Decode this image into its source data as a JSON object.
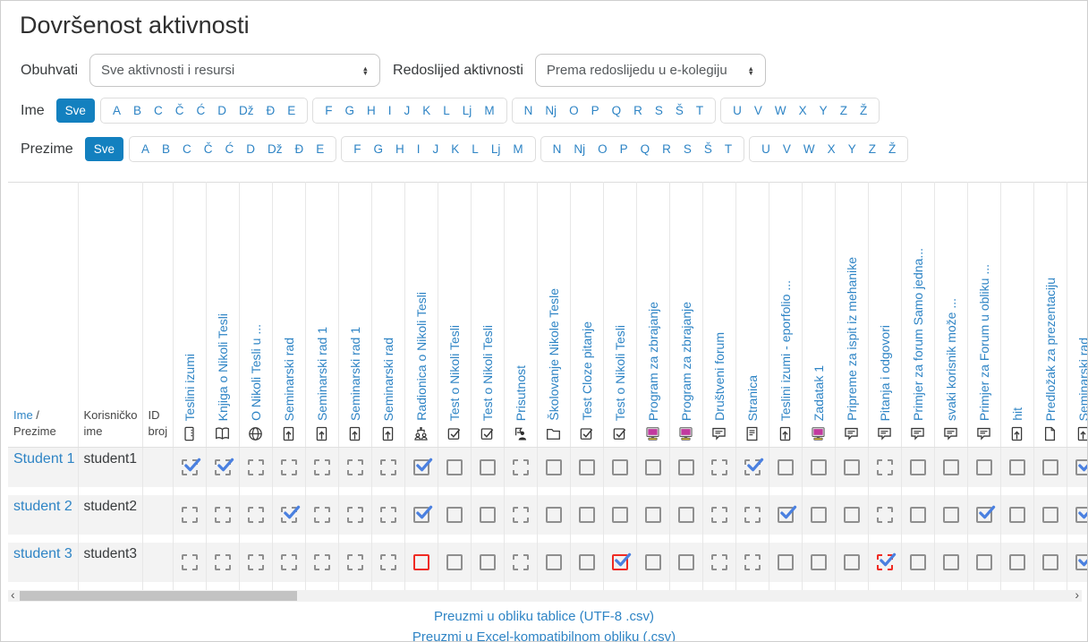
{
  "page": {
    "title": "Dovršenost aktivnosti"
  },
  "filters": {
    "include_label": "Obuhvati",
    "include_value": "Sve aktivnosti i resursi",
    "order_label": "Redoslijed aktivnosti",
    "order_value": "Prema redoslijedu u e-kolegiju"
  },
  "name_filters": {
    "first_label": "Ime",
    "last_label": "Prezime",
    "all_label": "Sve",
    "letter_groups": [
      [
        "A",
        "B",
        "C",
        "Č",
        "Ć",
        "D",
        "Dž",
        "Đ",
        "E"
      ],
      [
        "F",
        "G",
        "H",
        "I",
        "J",
        "K",
        "L",
        "Lj",
        "M"
      ],
      [
        "N",
        "Nj",
        "O",
        "P",
        "Q",
        "R",
        "S",
        "Š",
        "T"
      ],
      [
        "U",
        "V",
        "W",
        "X",
        "Y",
        "Z",
        "Ž"
      ]
    ]
  },
  "table": {
    "first_col": {
      "sort_first": "Ime",
      "separator": "/",
      "sort_last": "Prezime"
    },
    "username_header": "Korisničko ime",
    "id_header": "ID broj",
    "columns": [
      {
        "label": "Teslini izumi",
        "icon": "book-icon"
      },
      {
        "label": "Knjiga o Nikoli Tesli",
        "icon": "open-book-icon"
      },
      {
        "label": "O Nikoli Tesli u ...",
        "icon": "globe-icon"
      },
      {
        "label": "Seminarski rad",
        "icon": "assignment-icon"
      },
      {
        "label": "Seminarski rad 1",
        "icon": "assignment-icon"
      },
      {
        "label": "Seminarski rad 1",
        "icon": "assignment-icon"
      },
      {
        "label": "Seminarski rad",
        "icon": "assignment-icon"
      },
      {
        "label": "Radionica o Nikoli Tesli",
        "icon": "workshop-icon"
      },
      {
        "label": "Test o Nikoli Tesli",
        "icon": "quiz-icon"
      },
      {
        "label": "Test o Nikoli Tesli",
        "icon": "quiz-icon"
      },
      {
        "label": "Prisutnost",
        "icon": "attendance-icon"
      },
      {
        "label": "Školovanje Nikole Tesle",
        "icon": "folder-icon"
      },
      {
        "label": "Test Cloze pitanje",
        "icon": "quiz-icon"
      },
      {
        "label": "Test o Nikoli Tesli",
        "icon": "quiz-icon"
      },
      {
        "label": "Program za zbrajanje",
        "icon": "external-tool-icon"
      },
      {
        "label": "Program za zbrajanje",
        "icon": "external-tool-icon"
      },
      {
        "label": "Društveni forum",
        "icon": "forum-icon"
      },
      {
        "label": "Stranica",
        "icon": "page-icon"
      },
      {
        "label": "Teslini izumi - eporfolio ...",
        "icon": "assignment-icon"
      },
      {
        "label": "Zadatak 1",
        "icon": "external-tool-icon"
      },
      {
        "label": "Pripreme za ispit iz mehanike",
        "icon": "forum-icon"
      },
      {
        "label": "Pitanja i odgovori",
        "icon": "forum-icon"
      },
      {
        "label": "Primjer za forum Samo jedna...",
        "icon": "forum-icon"
      },
      {
        "label": "svaki korisnik može ...",
        "icon": "forum-icon"
      },
      {
        "label": "Primjer za Forum u obliku ...",
        "icon": "forum-icon"
      },
      {
        "label": "hit",
        "icon": "assignment-icon"
      },
      {
        "label": "Predložak za prezentaciju",
        "icon": "blank-page-icon"
      },
      {
        "label": "Seminarski rad",
        "icon": "assignment-icon"
      }
    ],
    "rows": [
      {
        "name": "Student 1",
        "username": "student1",
        "cells": [
          "auto-done",
          "auto-done",
          "auto",
          "auto",
          "auto",
          "auto",
          "auto",
          "manual-done",
          "manual",
          "manual",
          "auto",
          "manual",
          "manual",
          "manual",
          "manual",
          "manual",
          "auto",
          "auto-done",
          "manual",
          "manual",
          "manual",
          "auto",
          "manual",
          "manual",
          "manual",
          "manual",
          "manual",
          "manual-done"
        ]
      },
      {
        "name": "student 2",
        "username": "student2",
        "cells": [
          "auto",
          "auto",
          "auto",
          "auto-done",
          "auto",
          "auto",
          "auto",
          "manual-done",
          "manual",
          "manual",
          "auto",
          "manual",
          "manual",
          "manual",
          "manual",
          "manual",
          "auto",
          "auto",
          "manual-done",
          "manual",
          "manual",
          "auto",
          "manual",
          "manual",
          "manual-done",
          "manual",
          "manual",
          "manual-done"
        ]
      },
      {
        "name": "student 3",
        "username": "student3",
        "cells": [
          "auto",
          "auto",
          "auto",
          "auto",
          "auto",
          "auto",
          "auto",
          "manual-fail",
          "manual",
          "manual",
          "auto",
          "manual",
          "manual",
          "manual-fail-done",
          "manual",
          "manual",
          "auto",
          "auto",
          "manual",
          "manual",
          "manual",
          "auto-fail-done",
          "manual",
          "manual",
          "manual",
          "manual",
          "manual",
          "manual-done"
        ]
      }
    ]
  },
  "scrollbar": {
    "left_arrow": "‹",
    "right_arrow": "›"
  },
  "footer": {
    "links": [
      "Preuzmi u obliku tablice (UTF-8 .csv)",
      "Preuzmi u Excel-kompatibilnom obliku (.csv)"
    ]
  },
  "colors": {
    "link": "#2e84c5",
    "accent": "#1380bf",
    "check": "#4a80e0",
    "fail": "#ef2b23"
  }
}
